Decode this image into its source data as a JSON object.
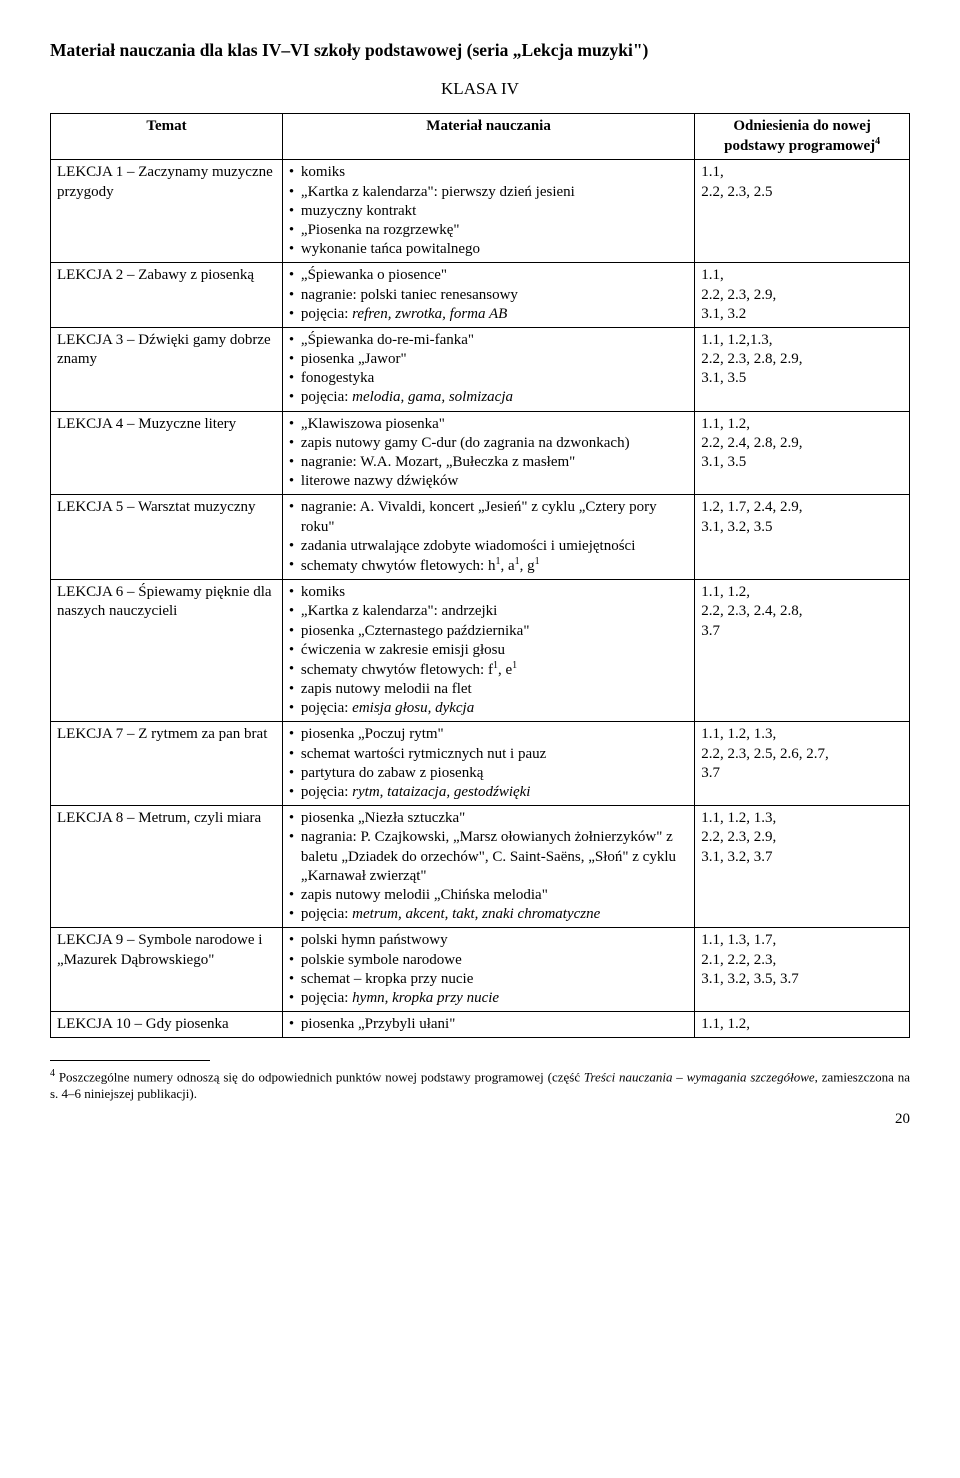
{
  "title": "Materiał nauczania dla klas IV–VI szkoły podstawowej (seria „Lekcja muzyki\")",
  "classLabel": "KLASA IV",
  "headers": {
    "c1": "Temat",
    "c2": "Materiał nauczania",
    "c3_line1": "Odniesienia do nowej",
    "c3_line2": "podstawy programowej"
  },
  "rows": [
    {
      "topic": "LEKCJA 1 – Zaczynamy muzyczne przygody",
      "items": [
        {
          "t": "komiks"
        },
        {
          "t": "„Kartka z kalendarza\": pierwszy dzień jesieni"
        },
        {
          "t": "muzyczny kontrakt"
        },
        {
          "t": "„Piosenka na rozgrzewkę\""
        },
        {
          "t": "wykonanie tańca powitalnego"
        }
      ],
      "refs": "1.1,\n2.2, 2.3, 2.5"
    },
    {
      "topic": "LEKCJA 2 – Zabawy z piosenką",
      "items": [
        {
          "t": "„Śpiewanka o piosence\""
        },
        {
          "t": "nagranie: polski taniec renesansowy"
        },
        {
          "pre": "pojęcia: ",
          "it": "refren, zwrotka, forma AB"
        }
      ],
      "refs": "1.1,\n2.2, 2.3, 2.9,\n3.1, 3.2"
    },
    {
      "topic": "LEKCJA 3 – Dźwięki gamy dobrze znamy",
      "items": [
        {
          "t": "„Śpiewanka do-re-mi-fanka\""
        },
        {
          "t": "piosenka „Jawor\""
        },
        {
          "t": "fonogestyka"
        },
        {
          "pre": "pojęcia: ",
          "it": "melodia, gama, solmizacja"
        }
      ],
      "refs": "1.1, 1.2,1.3,\n2.2, 2.3,  2.8, 2.9,\n3.1, 3.5"
    },
    {
      "topic": "LEKCJA 4 – Muzyczne litery",
      "items": [
        {
          "t": "„Klawiszowa piosenka\""
        },
        {
          "t": "zapis nutowy gamy C-dur (do zagrania na dzwonkach)"
        },
        {
          "t": "nagranie: W.A. Mozart, „Bułeczka z masłem\""
        },
        {
          "t": "literowe nazwy dźwięków"
        }
      ],
      "refs": "1.1, 1.2,\n2.2, 2.4, 2.8, 2.9,\n3.1, 3.5"
    },
    {
      "topic": "LEKCJA 5 – Warsztat muzyczny",
      "items": [
        {
          "t": "nagranie: A. Vivaldi, koncert „Jesień\" z cyklu „Cztery pory roku\""
        },
        {
          "t": "zadania utrwalające zdobyte wiadomości i umiejętności"
        },
        {
          "html": "schematy chwytów fletowych: h<sup>1</sup>, a<sup>1</sup>, g<sup>1</sup>"
        }
      ],
      "refs": "1.2, 1.7, 2.4, 2.9,\n3.1, 3.2, 3.5"
    },
    {
      "topic": "LEKCJA 6 – Śpiewamy pięknie dla naszych nauczycieli",
      "items": [
        {
          "t": "komiks"
        },
        {
          "t": "„Kartka z kalendarza\": andrzejki"
        },
        {
          "t": "piosenka „Czternastego października\""
        },
        {
          "t": "ćwiczenia w zakresie emisji głosu"
        },
        {
          "html": "schematy chwytów fletowych: f<sup>1</sup>, e<sup>1</sup>"
        },
        {
          "t": "zapis nutowy melodii na flet"
        },
        {
          "pre": "pojęcia: ",
          "it": "emisja głosu, dykcja"
        }
      ],
      "refs": "1.1, 1.2,\n2.2, 2.3, 2.4, 2.8,\n3.7"
    },
    {
      "topic": "LEKCJA 7 – Z rytmem za pan brat",
      "items": [
        {
          "t": "piosenka „Poczuj rytm\""
        },
        {
          "t": "schemat wartości rytmicznych nut i pauz"
        },
        {
          "t": "partytura do zabaw z piosenką"
        },
        {
          "pre": "pojęcia: ",
          "it": "rytm, tataizacja, gestodźwięki"
        }
      ],
      "refs": "1.1, 1.2, 1.3,\n2.2, 2.3, 2.5, 2.6, 2.7,\n3.7"
    },
    {
      "topic": "LEKCJA 8 – Metrum, czyli miara",
      "items": [
        {
          "t": "piosenka „Niezła sztuczka\""
        },
        {
          "t": "nagrania: P. Czajkowski, „Marsz ołowianych żołnierzyków\" z baletu „Dziadek do orzechów\",\nC. Saint-Saëns, „Słoń\" z cyklu „Karnawał zwierząt\""
        },
        {
          "t": "zapis nutowy melodii „Chińska melodia\""
        },
        {
          "pre": "pojęcia: ",
          "it": "metrum, akcent, takt, znaki chromatyczne"
        }
      ],
      "refs": "1.1, 1.2, 1.3,\n2.2, 2.3, 2.9,\n3.1, 3.2, 3.7"
    },
    {
      "topic": "LEKCJA 9 – Symbole narodowe i „Mazurek Dąbrowskiego\"",
      "items": [
        {
          "t": "polski hymn państwowy"
        },
        {
          "t": "polskie symbole narodowe"
        },
        {
          "t": "schemat – kropka przy nucie"
        },
        {
          "pre": "pojęcia: ",
          "it": "hymn, kropka przy nucie"
        }
      ],
      "refs": "1.1, 1.3, 1.7,\n2.1, 2.2, 2.3,\n3.1, 3.2, 3.5, 3.7"
    },
    {
      "topic": "LEKCJA 10 – Gdy piosenka",
      "items": [
        {
          "t": "piosenka „Przybyli ułani\""
        }
      ],
      "refs": "1.1, 1.2,"
    }
  ],
  "footnote": {
    "num": "4",
    "pre": " Poszczególne numery odnoszą się do odpowiednich punktów nowej podstawy programowej (część ",
    "it": "Treści nauczania – wymagania szczegółowe",
    "post": ", zamieszczona na s. 4–6 niniejszej publikacji)."
  },
  "pageNum": "20"
}
